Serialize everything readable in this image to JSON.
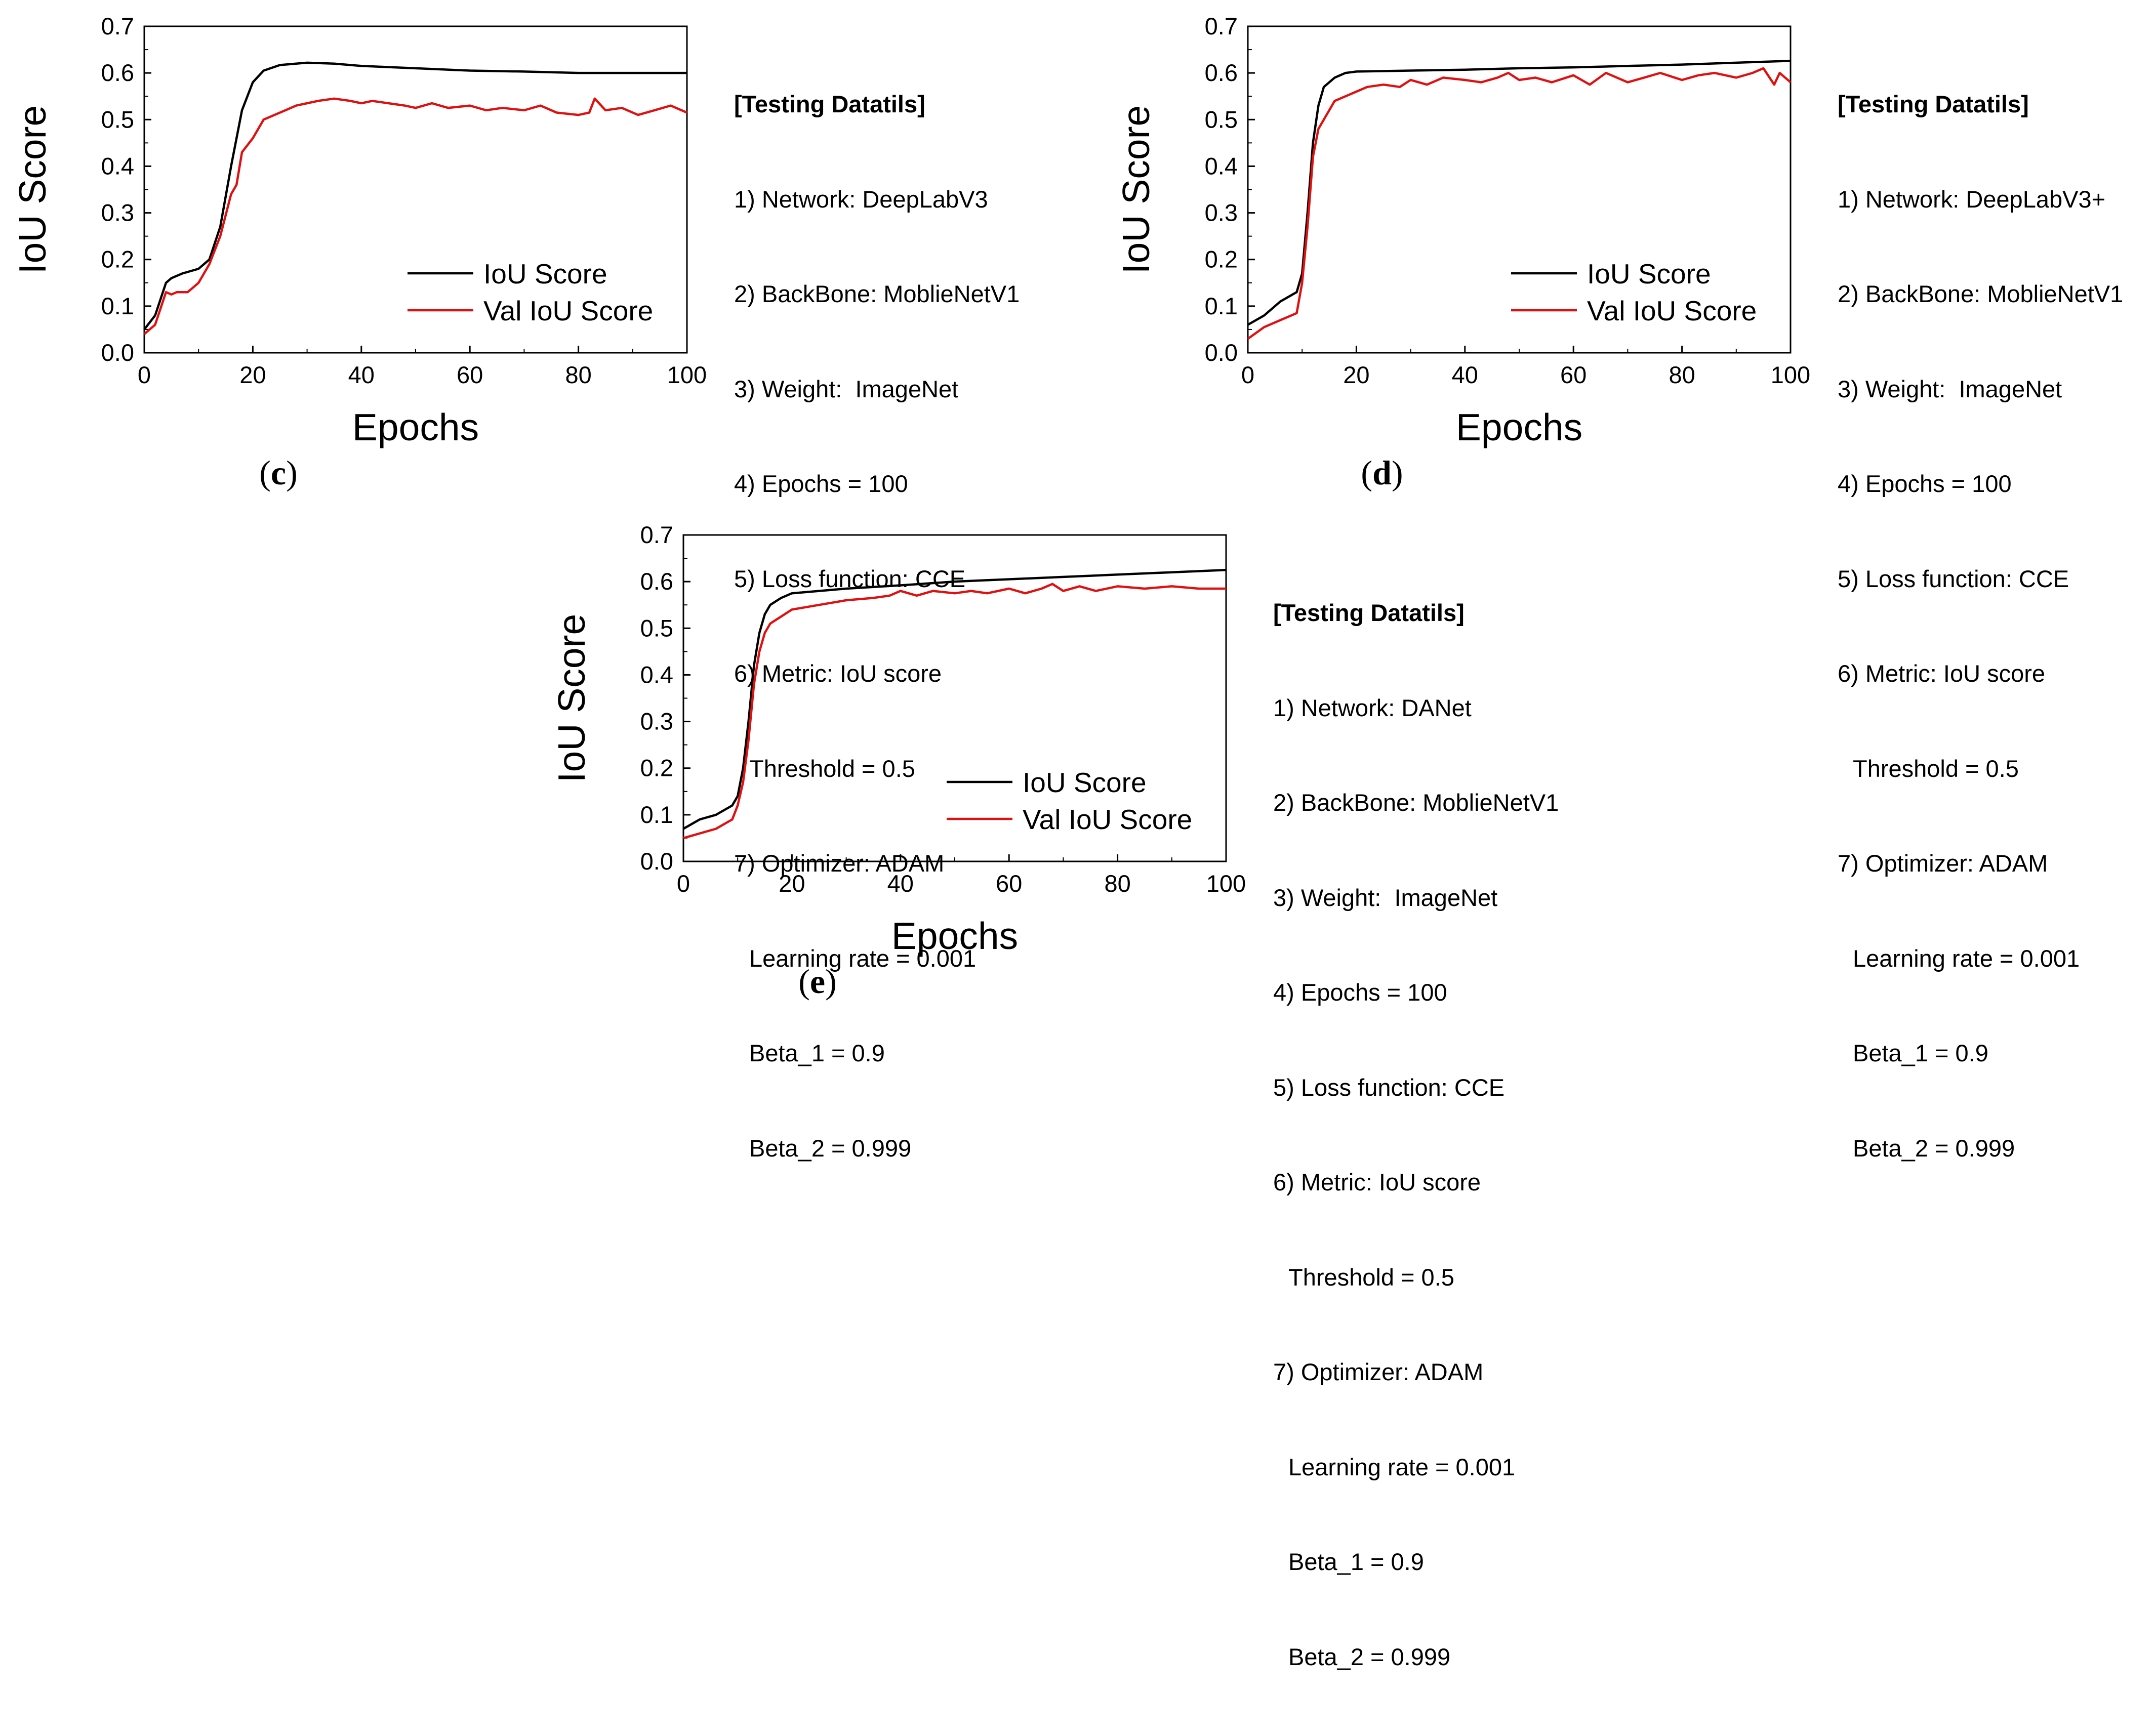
{
  "colors": {
    "iou": "#000000",
    "val_iou": "#e01010"
  },
  "chart_data": [
    {
      "panel": "c",
      "type": "line",
      "caption_letter": "c",
      "xlabel": "Epochs",
      "ylabel": "IoU Score",
      "xlim": [
        0,
        100
      ],
      "ylim": [
        0,
        0.7
      ],
      "xticks": [
        "0",
        "20",
        "40",
        "60",
        "80",
        "100"
      ],
      "yticks": [
        "0.0",
        "0.1",
        "0.2",
        "0.3",
        "0.4",
        "0.5",
        "0.6",
        "0.7"
      ],
      "legend": [
        "IoU Score",
        "Val IoU Score"
      ],
      "legend_position": "lower-right",
      "series": [
        {
          "name": "IoU Score",
          "x": [
            0,
            2,
            4,
            5,
            7,
            10,
            12,
            14,
            16,
            18,
            20,
            22,
            25,
            30,
            35,
            40,
            50,
            60,
            70,
            80,
            90,
            100
          ],
          "y": [
            0.05,
            0.08,
            0.15,
            0.16,
            0.17,
            0.18,
            0.2,
            0.27,
            0.4,
            0.52,
            0.58,
            0.605,
            0.617,
            0.622,
            0.62,
            0.615,
            0.61,
            0.605,
            0.603,
            0.6,
            0.6,
            0.6
          ]
        },
        {
          "name": "Val IoU Score",
          "x": [
            0,
            2,
            4,
            5,
            6,
            8,
            10,
            12,
            14,
            16,
            17,
            18,
            20,
            22,
            24,
            26,
            28,
            30,
            32,
            35,
            38,
            40,
            42,
            45,
            48,
            50,
            53,
            56,
            60,
            63,
            66,
            70,
            73,
            76,
            80,
            82,
            83,
            85,
            88,
            91,
            94,
            97,
            100
          ],
          "y": [
            0.04,
            0.06,
            0.13,
            0.125,
            0.13,
            0.13,
            0.15,
            0.19,
            0.25,
            0.34,
            0.36,
            0.43,
            0.46,
            0.5,
            0.51,
            0.52,
            0.53,
            0.535,
            0.54,
            0.545,
            0.54,
            0.535,
            0.54,
            0.535,
            0.53,
            0.525,
            0.535,
            0.525,
            0.53,
            0.52,
            0.525,
            0.52,
            0.53,
            0.515,
            0.51,
            0.515,
            0.545,
            0.52,
            0.525,
            0.51,
            0.52,
            0.53,
            0.515
          ]
        }
      ],
      "details": {
        "header": "[Testing Datatils]",
        "lines": [
          "1) Network: DeepLabV3",
          "2) BackBone: MoblieNetV1",
          "3) Weight:  ImageNet",
          "4) Epochs = 100",
          "5) Loss function: CCE",
          "6) Metric: IoU score"
        ],
        "threshold": "Threshold = 0.5",
        "optimizer": "7) Optimizer: ADAM",
        "opt_lines": [
          "Learning rate = 0.001",
          "Beta_1 = 0.9",
          "Beta_2 = 0.999"
        ]
      }
    },
    {
      "panel": "d",
      "type": "line",
      "caption_letter": "d",
      "xlabel": "Epochs",
      "ylabel": "IoU Score",
      "xlim": [
        0,
        100
      ],
      "ylim": [
        0,
        0.7
      ],
      "xticks": [
        "0",
        "20",
        "40",
        "60",
        "80",
        "100"
      ],
      "yticks": [
        "0.0",
        "0.1",
        "0.2",
        "0.3",
        "0.4",
        "0.5",
        "0.6",
        "0.7"
      ],
      "legend": [
        "IoU Score",
        "Val IoU Score"
      ],
      "legend_position": "lower-right",
      "series": [
        {
          "name": "IoU Score",
          "x": [
            0,
            3,
            6,
            9,
            10,
            11,
            12,
            13,
            14,
            16,
            18,
            20,
            30,
            40,
            50,
            60,
            70,
            80,
            90,
            100
          ],
          "y": [
            0.06,
            0.08,
            0.11,
            0.13,
            0.17,
            0.3,
            0.45,
            0.53,
            0.57,
            0.59,
            0.6,
            0.603,
            0.605,
            0.607,
            0.61,
            0.612,
            0.615,
            0.618,
            0.622,
            0.626
          ]
        },
        {
          "name": "Val IoU Score",
          "x": [
            0,
            3,
            6,
            9,
            10,
            11,
            12,
            13,
            14,
            15,
            16,
            18,
            20,
            22,
            25,
            28,
            30,
            33,
            36,
            40,
            43,
            46,
            48,
            50,
            53,
            56,
            60,
            63,
            66,
            70,
            73,
            76,
            80,
            83,
            86,
            90,
            93,
            95,
            97,
            98,
            100
          ],
          "y": [
            0.03,
            0.055,
            0.07,
            0.085,
            0.15,
            0.27,
            0.42,
            0.48,
            0.5,
            0.52,
            0.54,
            0.55,
            0.56,
            0.57,
            0.575,
            0.57,
            0.585,
            0.575,
            0.59,
            0.585,
            0.58,
            0.59,
            0.6,
            0.585,
            0.59,
            0.58,
            0.595,
            0.575,
            0.6,
            0.58,
            0.59,
            0.6,
            0.585,
            0.595,
            0.6,
            0.59,
            0.6,
            0.61,
            0.575,
            0.6,
            0.58
          ]
        }
      ],
      "details": {
        "header": "[Testing Datatils]",
        "lines": [
          "1) Network: DeepLabV3+",
          "2) BackBone: MoblieNetV1",
          "3) Weight:  ImageNet",
          "4) Epochs = 100",
          "5) Loss function: CCE",
          "6) Metric: IoU score"
        ],
        "threshold": "Threshold = 0.5",
        "optimizer": "7) Optimizer: ADAM",
        "opt_lines": [
          "Learning rate = 0.001",
          "Beta_1 = 0.9",
          "Beta_2 = 0.999"
        ]
      }
    },
    {
      "panel": "e",
      "type": "line",
      "caption_letter": "e",
      "xlabel": "Epochs",
      "ylabel": "IoU Score",
      "xlim": [
        0,
        100
      ],
      "ylim": [
        0,
        0.7
      ],
      "xticks": [
        "0",
        "20",
        "40",
        "60",
        "80",
        "100"
      ],
      "yticks": [
        "0.0",
        "0.1",
        "0.2",
        "0.3",
        "0.4",
        "0.5",
        "0.6",
        "0.7"
      ],
      "legend": [
        "IoU Score",
        "Val IoU Score"
      ],
      "legend_position": "lower-right",
      "series": [
        {
          "name": "IoU Score",
          "x": [
            0,
            3,
            6,
            9,
            10,
            11,
            12,
            13,
            14,
            15,
            16,
            18,
            20,
            25,
            30,
            40,
            50,
            60,
            70,
            80,
            90,
            100
          ],
          "y": [
            0.07,
            0.09,
            0.1,
            0.12,
            0.14,
            0.2,
            0.3,
            0.42,
            0.49,
            0.53,
            0.55,
            0.565,
            0.575,
            0.58,
            0.585,
            0.592,
            0.6,
            0.605,
            0.61,
            0.615,
            0.62,
            0.625
          ]
        },
        {
          "name": "Val IoU Score",
          "x": [
            0,
            3,
            6,
            9,
            10,
            11,
            12,
            13,
            14,
            15,
            16,
            18,
            20,
            25,
            30,
            35,
            38,
            40,
            43,
            46,
            50,
            53,
            56,
            60,
            63,
            66,
            68,
            70,
            73,
            76,
            80,
            85,
            90,
            95,
            100
          ],
          "y": [
            0.05,
            0.06,
            0.07,
            0.09,
            0.12,
            0.17,
            0.26,
            0.38,
            0.45,
            0.49,
            0.51,
            0.525,
            0.54,
            0.55,
            0.56,
            0.565,
            0.57,
            0.58,
            0.57,
            0.58,
            0.575,
            0.58,
            0.575,
            0.585,
            0.575,
            0.585,
            0.595,
            0.58,
            0.59,
            0.58,
            0.59,
            0.585,
            0.59,
            0.585,
            0.585
          ]
        }
      ],
      "details": {
        "header": "[Testing Datatils]",
        "lines": [
          "1) Network: DANet",
          "2) BackBone: MoblieNetV1",
          "3) Weight:  ImageNet",
          "4) Epochs = 100",
          "5) Loss function: CCE",
          "6) Metric: IoU score"
        ],
        "threshold": "Threshold = 0.5",
        "optimizer": "7) Optimizer: ADAM",
        "opt_lines": [
          "Learning rate = 0.001",
          "Beta_1 = 0.9",
          "Beta_2 = 0.999"
        ]
      }
    }
  ]
}
